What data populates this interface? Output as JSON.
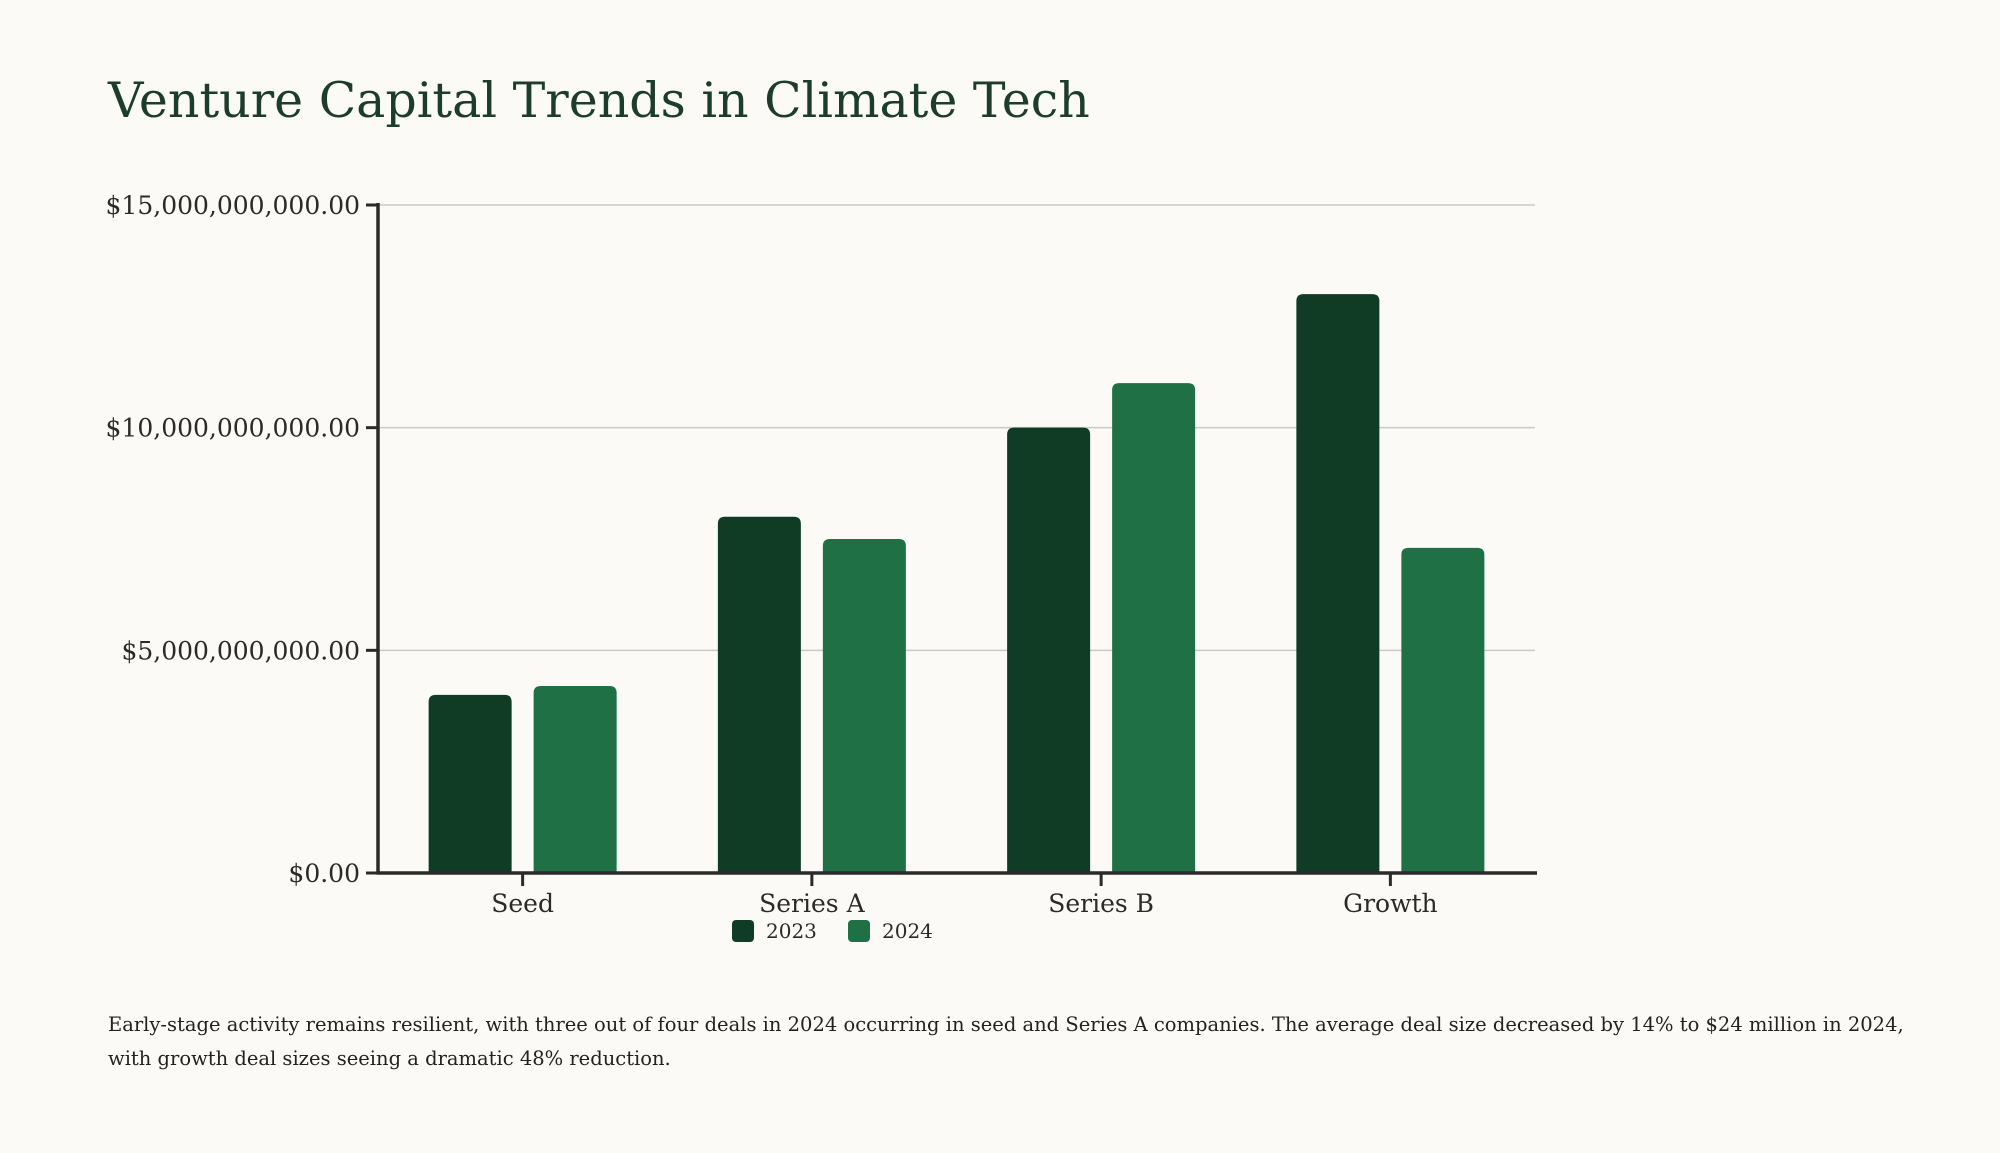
{
  "title": "Venture Capital Trends in Climate Tech",
  "caption": "Early-stage activity remains resilient, with three out of four deals in 2024 occurring in seed and Series A companies. The average deal size decreased by 14% to $24 million in 2024, with growth deal sizes seeing a dramatic 48% reduction.",
  "chart_data": {
    "type": "bar",
    "categories": [
      "Seed",
      "Series A",
      "Series B",
      "Growth"
    ],
    "series": [
      {
        "name": "2023",
        "color": "#103b24",
        "values": [
          4000000000,
          8000000000,
          10000000000,
          13000000000
        ]
      },
      {
        "name": "2024",
        "color": "#1f7044",
        "values": [
          4200000000,
          7500000000,
          11000000000,
          7300000000
        ]
      }
    ],
    "yticks": [
      {
        "value": 0,
        "label": "$0.00"
      },
      {
        "value": 5000000000,
        "label": "$5,000,000,000.00"
      },
      {
        "value": 10000000000,
        "label": "$10,000,000,000.00"
      },
      {
        "value": 15000000000,
        "label": "$15,000,000,000.00"
      }
    ],
    "ylim": [
      0,
      15000000000
    ],
    "xlabel": "",
    "ylabel": "",
    "grid": true,
    "legend": "bottom-center"
  }
}
